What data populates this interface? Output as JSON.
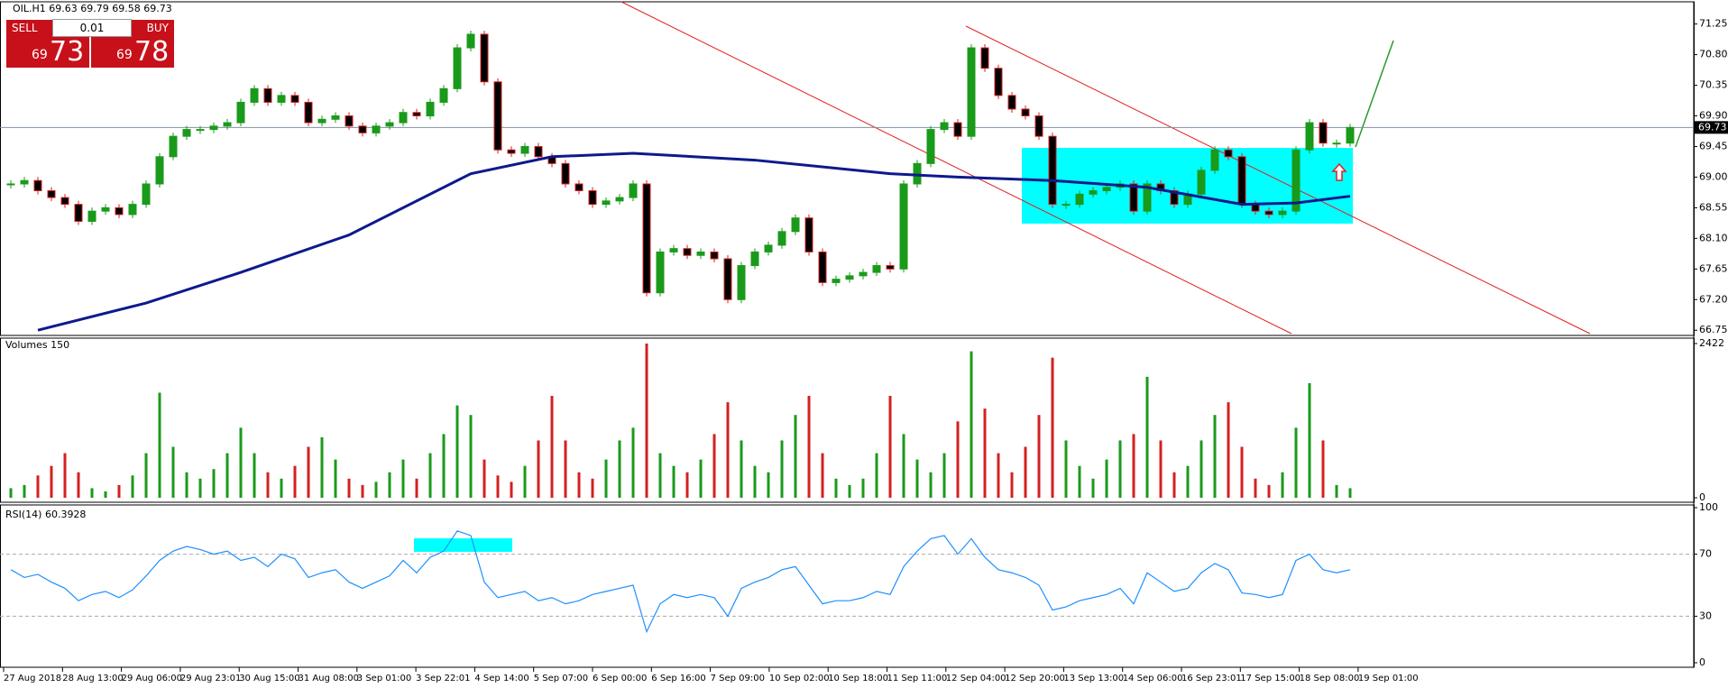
{
  "trade_panel": {
    "sell": "SELL",
    "buy": "BUY",
    "lot": "0.01",
    "sell_big": "73",
    "sell_small": "69",
    "buy_big": "78",
    "buy_small": "69"
  },
  "chart_data": {
    "type": "candlestick",
    "title": "OIL.H1  69.63 69.79 69.58 69.73",
    "up_color": "#1a9a1a",
    "down_color": "#d42020",
    "close": [
      68.9,
      68.95,
      68.8,
      68.7,
      68.6,
      68.35,
      68.5,
      68.55,
      68.45,
      68.6,
      68.9,
      69.3,
      69.6,
      69.7,
      69.7,
      69.75,
      69.8,
      70.1,
      70.3,
      70.1,
      70.2,
      70.1,
      69.8,
      69.85,
      69.9,
      69.75,
      69.65,
      69.75,
      69.8,
      69.95,
      69.9,
      70.1,
      70.3,
      70.9,
      71.1,
      70.4,
      69.4,
      69.35,
      69.45,
      69.3,
      69.2,
      68.9,
      68.8,
      68.6,
      68.65,
      68.7,
      68.9,
      67.3,
      67.9,
      67.95,
      67.85,
      67.9,
      67.8,
      67.2,
      67.7,
      67.9,
      68.0,
      68.2,
      68.4,
      67.9,
      67.45,
      67.5,
      67.55,
      67.6,
      67.7,
      67.65,
      68.9,
      69.2,
      69.7,
      69.8,
      69.6,
      70.9,
      70.6,
      70.2,
      70.0,
      69.9,
      69.6,
      68.6,
      68.6,
      68.75,
      68.8,
      68.85,
      68.9,
      68.5,
      68.9,
      68.8,
      68.6,
      68.75,
      69.1,
      69.4,
      69.3,
      68.6,
      68.5,
      68.45,
      68.5,
      69.4,
      69.8,
      69.5,
      69.5,
      69.73
    ],
    "ylim": [
      66.7,
      71.55
    ],
    "yticks": [
      71.25,
      {
        "value": 70.8,
        "label": "70.80"
      },
      70.35,
      {
        "value": 69.9,
        "label": "69.90"
      },
      69.45,
      {
        "value": 69.0,
        "label": "69.00"
      },
      68.55,
      {
        "value": 68.1,
        "label": "68.10"
      },
      67.65,
      {
        "value": 67.2,
        "label": "67.20"
      },
      66.75
    ],
    "last_price": 69.73,
    "moving_average": {
      "color": "#0d1a8c",
      "x": [
        2,
        10,
        17,
        25,
        34,
        40,
        46,
        55,
        65,
        70,
        77,
        84,
        91,
        95,
        99
      ],
      "values": [
        66.75,
        67.15,
        67.6,
        68.15,
        69.05,
        69.3,
        69.35,
        69.25,
        69.05,
        69.0,
        68.95,
        68.85,
        68.6,
        68.62,
        68.72
      ]
    },
    "x_labels": [
      "27 Aug 2018",
      "28 Aug 13:00",
      "29 Aug 06:00",
      "29 Aug 23:01",
      "30 Aug 15:00",
      "31 Aug 08:00",
      "3 Sep 01:00",
      "3 Sep 22:01",
      "4 Sep 14:00",
      "5 Sep 07:00",
      "6 Sep 00:00",
      "6 Sep 16:00",
      "7 Sep 09:00",
      "10 Sep 02:00",
      "10 Sep 18:00",
      "11 Sep 11:00",
      "12 Sep 04:00",
      "12 Sep 20:00",
      "13 Sep 13:00",
      "14 Sep 06:00",
      "16 Sep 23:01",
      "17 Sep 15:00",
      "18 Sep 08:00",
      "19 Sep 01:00"
    ],
    "volume": {
      "title": "Volumes 150",
      "ylim": [
        0,
        2422
      ],
      "yticks": [
        2422,
        0
      ],
      "values": [
        150,
        200,
        350,
        500,
        700,
        400,
        150,
        100,
        200,
        350,
        700,
        1650,
        800,
        400,
        300,
        450,
        700,
        1100,
        700,
        400,
        300,
        500,
        800,
        950,
        600,
        300,
        200,
        250,
        400,
        600,
        300,
        700,
        1000,
        1450,
        1300,
        600,
        350,
        250,
        500,
        900,
        1600,
        900,
        400,
        300,
        600,
        900,
        1100,
        2422,
        700,
        500,
        400,
        600,
        1000,
        1500,
        900,
        500,
        400,
        900,
        1300,
        1600,
        700,
        300,
        200,
        300,
        700,
        1600,
        1000,
        600,
        400,
        700,
        1200,
        2300,
        1400,
        700,
        400,
        800,
        1300,
        2200,
        900,
        500,
        300,
        600,
        900,
        1000,
        1900,
        900,
        400,
        500,
        900,
        1300,
        1500,
        800,
        300,
        200,
        400,
        1100,
        1800,
        900,
        200,
        150
      ]
    },
    "rsi": {
      "title": "RSI(14) 60.3928",
      "color": "#1e90ff",
      "ylim": [
        0,
        100
      ],
      "yticks": [
        100,
        70,
        30,
        0
      ],
      "values": [
        60,
        55,
        57,
        52,
        48,
        40,
        44,
        46,
        42,
        47,
        56,
        66,
        72,
        75,
        73,
        70,
        72,
        66,
        68,
        62,
        70,
        67,
        55,
        58,
        60,
        52,
        48,
        52,
        56,
        66,
        58,
        68,
        72,
        85,
        82,
        52,
        42,
        44,
        46,
        40,
        42,
        38,
        40,
        44,
        46,
        48,
        50,
        20,
        38,
        44,
        42,
        44,
        42,
        30,
        48,
        52,
        55,
        60,
        62,
        50,
        38,
        40,
        40,
        42,
        46,
        44,
        62,
        72,
        80,
        82,
        70,
        80,
        68,
        60,
        58,
        55,
        50,
        34,
        36,
        40,
        42,
        44,
        48,
        38,
        58,
        52,
        46,
        48,
        58,
        64,
        60,
        45,
        44,
        42,
        44,
        66,
        70,
        60,
        58,
        60
      ]
    }
  }
}
